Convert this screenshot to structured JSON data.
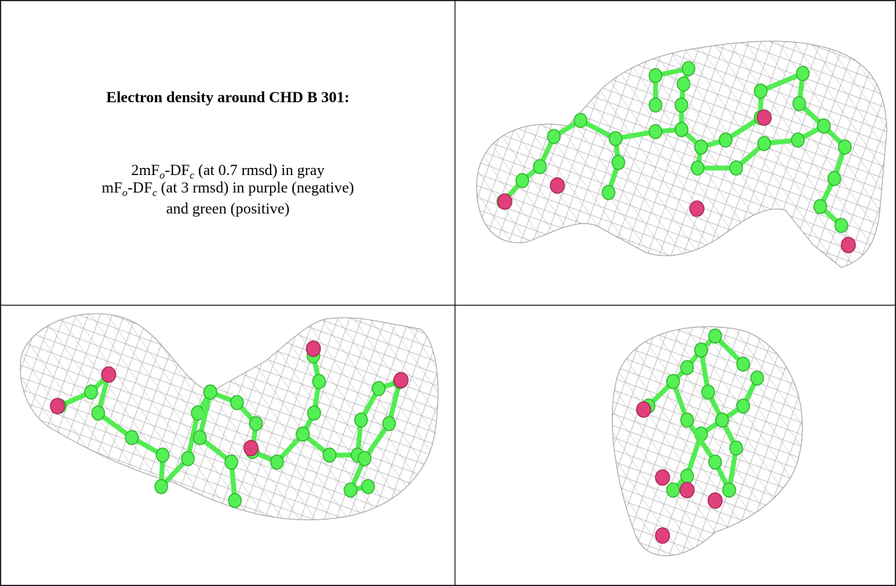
{
  "title": "Electron density around CHD B 301:",
  "caption": {
    "line1": [
      "2mF",
      "o",
      "-DF",
      "c",
      " (at 0.7 rmsd) in gray"
    ],
    "line2": [
      "mF",
      "o",
      "-DF",
      "c",
      " (at 3 rmsd) in purple (negative)"
    ],
    "line3": "and green (positive)"
  }
}
